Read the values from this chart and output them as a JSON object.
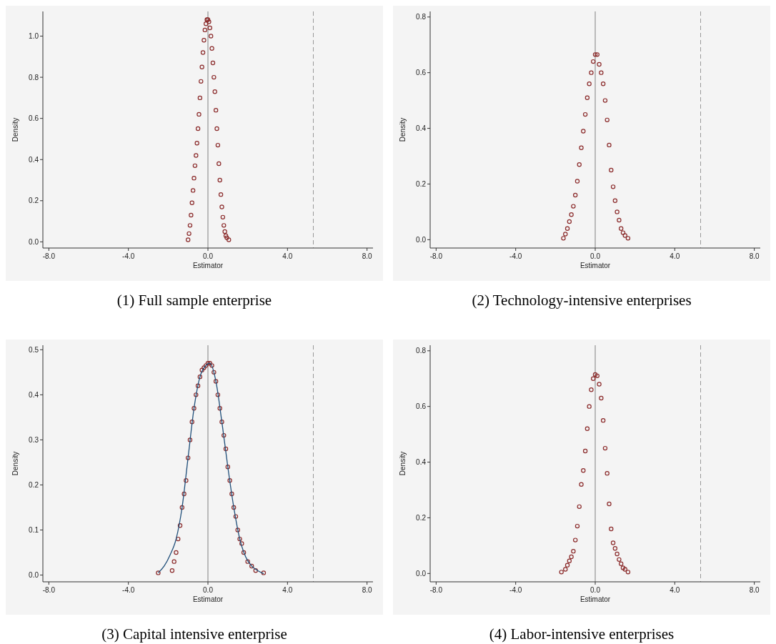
{
  "chart_data": [
    {
      "type": "scatter",
      "title": "(1) Full sample enterprise",
      "xlabel": "Estimator",
      "ylabel": "Density",
      "marker": "circle",
      "xlim": [
        -8.3,
        8.3
      ],
      "ylim": [
        -0.03,
        1.12
      ],
      "xticks": [
        {
          "value": -8,
          "label": "-8.0"
        },
        {
          "value": -4,
          "label": "-4.0"
        },
        {
          "value": 0,
          "label": "0.0"
        },
        {
          "value": 4,
          "label": "4.0"
        },
        {
          "value": 8,
          "label": "8.0"
        }
      ],
      "yticks": [
        {
          "value": 0,
          "label": "0.0"
        },
        {
          "value": 0.2,
          "label": "0.2"
        },
        {
          "value": 0.4,
          "label": "0.4"
        },
        {
          "value": 0.6,
          "label": "0.6"
        },
        {
          "value": 0.8,
          "label": "0.8"
        },
        {
          "value": 1,
          "label": "1.0"
        }
      ],
      "ref_lines": [
        {
          "axis": "x",
          "value": 0,
          "color": "#808080",
          "line_style": "solid"
        },
        {
          "axis": "x",
          "value": 5.3,
          "color": "#999999",
          "line_style": "dashed"
        }
      ],
      "series": [
        {
          "color": "#8b2b2b",
          "x": [
            -1.0,
            -0.95,
            -0.9,
            -0.85,
            -0.8,
            -0.75,
            -0.7,
            -0.65,
            -0.6,
            -0.55,
            -0.5,
            -0.45,
            -0.4,
            -0.35,
            -0.3,
            -0.25,
            -0.2,
            -0.15,
            -0.1,
            -0.05,
            0,
            0.05,
            0.1,
            0.15,
            0.2,
            0.25,
            0.3,
            0.35,
            0.4,
            0.45,
            0.5,
            0.55,
            0.6,
            0.65,
            0.7,
            0.75,
            0.8,
            0.85,
            0.9,
            0.95,
            1.05
          ],
          "values": [
            0.01,
            0.04,
            0.08,
            0.13,
            0.19,
            0.25,
            0.31,
            0.37,
            0.42,
            0.48,
            0.55,
            0.62,
            0.7,
            0.78,
            0.85,
            0.92,
            0.98,
            1.03,
            1.06,
            1.08,
            1.08,
            1.07,
            1.04,
            1.0,
            0.94,
            0.87,
            0.8,
            0.73,
            0.64,
            0.55,
            0.47,
            0.38,
            0.3,
            0.23,
            0.17,
            0.12,
            0.08,
            0.05,
            0.03,
            0.02,
            0.01
          ]
        }
      ]
    },
    {
      "type": "scatter",
      "title": "(2) Technology-intensive enterprises",
      "xlabel": "Estimator",
      "ylabel": "Density",
      "marker": "circle",
      "xlim": [
        -8.3,
        8.3
      ],
      "ylim": [
        -0.03,
        0.82
      ],
      "xticks": [
        {
          "value": -8,
          "label": "-8.0"
        },
        {
          "value": -4,
          "label": "-4.0"
        },
        {
          "value": 0,
          "label": "0.0"
        },
        {
          "value": 4,
          "label": "4.0"
        },
        {
          "value": 8,
          "label": "8.0"
        }
      ],
      "yticks": [
        {
          "value": 0,
          "label": "0.0"
        },
        {
          "value": 0.2,
          "label": "0.2"
        },
        {
          "value": 0.4,
          "label": "0.4"
        },
        {
          "value": 0.6,
          "label": "0.6"
        },
        {
          "value": 0.8,
          "label": "0.8"
        }
      ],
      "ref_lines": [
        {
          "axis": "x",
          "value": 0,
          "color": "#808080",
          "line_style": "solid"
        },
        {
          "axis": "x",
          "value": 5.3,
          "color": "#999999",
          "line_style": "dashed"
        }
      ],
      "series": [
        {
          "color": "#8b2b2b",
          "x": [
            -1.6,
            -1.5,
            -1.4,
            -1.3,
            -1.2,
            -1.1,
            -1.0,
            -0.9,
            -0.8,
            -0.7,
            -0.6,
            -0.5,
            -0.4,
            -0.3,
            -0.2,
            -0.1,
            0,
            0.1,
            0.2,
            0.3,
            0.4,
            0.5,
            0.6,
            0.7,
            0.8,
            0.9,
            1.0,
            1.1,
            1.2,
            1.3,
            1.4,
            1.5,
            1.65
          ],
          "values": [
            0.005,
            0.02,
            0.04,
            0.065,
            0.09,
            0.12,
            0.16,
            0.21,
            0.27,
            0.33,
            0.39,
            0.45,
            0.51,
            0.56,
            0.6,
            0.64,
            0.665,
            0.665,
            0.63,
            0.6,
            0.56,
            0.5,
            0.43,
            0.34,
            0.25,
            0.19,
            0.14,
            0.1,
            0.07,
            0.04,
            0.025,
            0.015,
            0.005
          ]
        }
      ]
    },
    {
      "type": "scatter",
      "title": "(3) Capital intensive enterprise",
      "xlabel": "Estimator",
      "ylabel": "Density",
      "marker": "circle",
      "xlim": [
        -8.3,
        8.3
      ],
      "ylim": [
        -0.015,
        0.51
      ],
      "xticks": [
        {
          "value": -8,
          "label": "-8.0"
        },
        {
          "value": -4,
          "label": "-4.0"
        },
        {
          "value": 0,
          "label": "0.0"
        },
        {
          "value": 4,
          "label": "4.0"
        },
        {
          "value": 8,
          "label": "8.0"
        }
      ],
      "yticks": [
        {
          "value": 0,
          "label": "0.0"
        },
        {
          "value": 0.1,
          "label": "0.1"
        },
        {
          "value": 0.2,
          "label": "0.2"
        },
        {
          "value": 0.3,
          "label": "0.3"
        },
        {
          "value": 0.4,
          "label": "0.4"
        },
        {
          "value": 0.5,
          "label": "0.5"
        }
      ],
      "ref_lines": [
        {
          "axis": "x",
          "value": 0,
          "color": "#808080",
          "line_style": "solid"
        },
        {
          "axis": "x",
          "value": 5.3,
          "color": "#999999",
          "line_style": "dashed"
        }
      ],
      "series": [
        {
          "type": "line",
          "marker": "none",
          "color": "#1f4e79",
          "x": [
            -2.5,
            -2.2,
            -1.9,
            -1.6,
            -1.3,
            -1.0,
            -0.7,
            -0.4,
            -0.1,
            0.1,
            0.4,
            0.7,
            1.0,
            1.3,
            1.6,
            1.9,
            2.2,
            2.5,
            2.8
          ],
          "values": [
            0.005,
            0.02,
            0.045,
            0.08,
            0.15,
            0.26,
            0.37,
            0.44,
            0.465,
            0.47,
            0.43,
            0.34,
            0.24,
            0.15,
            0.08,
            0.04,
            0.02,
            0.01,
            0.003
          ]
        },
        {
          "color": "#8b2b2b",
          "x": [
            -2.5,
            -1.8,
            -1.7,
            -1.6,
            -1.5,
            -1.4,
            -1.3,
            -1.2,
            -1.1,
            -1.0,
            -0.9,
            -0.8,
            -0.7,
            -0.6,
            -0.5,
            -0.4,
            -0.3,
            -0.2,
            -0.1,
            0,
            0.1,
            0.2,
            0.3,
            0.4,
            0.5,
            0.6,
            0.7,
            0.8,
            0.9,
            1.0,
            1.1,
            1.2,
            1.3,
            1.4,
            1.5,
            1.6,
            1.7,
            1.8,
            2.0,
            2.2,
            2.4,
            2.8
          ],
          "values": [
            0.005,
            0.01,
            0.03,
            0.05,
            0.08,
            0.11,
            0.15,
            0.18,
            0.21,
            0.26,
            0.3,
            0.34,
            0.37,
            0.4,
            0.42,
            0.44,
            0.455,
            0.46,
            0.465,
            0.47,
            0.47,
            0.465,
            0.45,
            0.43,
            0.4,
            0.37,
            0.34,
            0.31,
            0.28,
            0.24,
            0.21,
            0.18,
            0.15,
            0.13,
            0.1,
            0.08,
            0.07,
            0.05,
            0.03,
            0.02,
            0.01,
            0.005
          ]
        }
      ]
    },
    {
      "type": "scatter",
      "title": "(4) Labor-intensive enterprises",
      "xlabel": "Estimator",
      "ylabel": "Density",
      "marker": "circle",
      "xlim": [
        -8.3,
        8.3
      ],
      "ylim": [
        -0.03,
        0.82
      ],
      "xticks": [
        {
          "value": -8,
          "label": "-8.0"
        },
        {
          "value": -4,
          "label": "-4.0"
        },
        {
          "value": 0,
          "label": "0.0"
        },
        {
          "value": 4,
          "label": "4.0"
        },
        {
          "value": 8,
          "label": "8.0"
        }
      ],
      "yticks": [
        {
          "value": 0,
          "label": "0.0"
        },
        {
          "value": 0.2,
          "label": "0.2"
        },
        {
          "value": 0.4,
          "label": "0.4"
        },
        {
          "value": 0.6,
          "label": "0.6"
        },
        {
          "value": 0.8,
          "label": "0.8"
        }
      ],
      "ref_lines": [
        {
          "axis": "x",
          "value": 0,
          "color": "#808080",
          "line_style": "solid"
        },
        {
          "axis": "x",
          "value": 5.3,
          "color": "#999999",
          "line_style": "dashed"
        }
      ],
      "series": [
        {
          "color": "#8b2b2b",
          "x": [
            -1.7,
            -1.5,
            -1.4,
            -1.3,
            -1.2,
            -1.1,
            -1.0,
            -0.9,
            -0.8,
            -0.7,
            -0.6,
            -0.5,
            -0.4,
            -0.3,
            -0.2,
            -0.1,
            0,
            0.1,
            0.2,
            0.3,
            0.4,
            0.5,
            0.6,
            0.7,
            0.8,
            0.9,
            1.0,
            1.1,
            1.2,
            1.3,
            1.4,
            1.5,
            1.65
          ],
          "values": [
            0.005,
            0.015,
            0.03,
            0.045,
            0.06,
            0.08,
            0.12,
            0.17,
            0.24,
            0.32,
            0.37,
            0.44,
            0.52,
            0.6,
            0.66,
            0.7,
            0.715,
            0.71,
            0.68,
            0.63,
            0.55,
            0.45,
            0.36,
            0.25,
            0.16,
            0.11,
            0.09,
            0.07,
            0.05,
            0.035,
            0.02,
            0.015,
            0.005
          ]
        }
      ]
    }
  ]
}
